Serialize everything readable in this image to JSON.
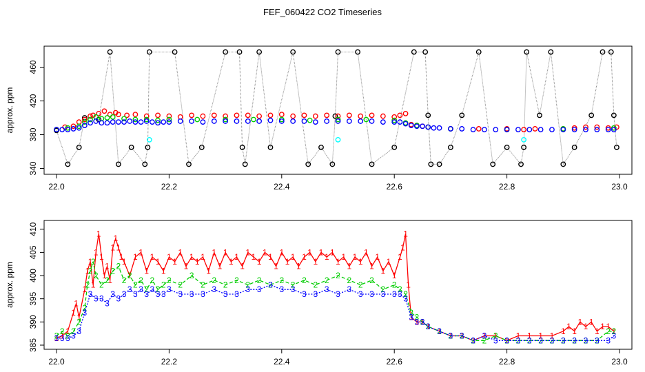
{
  "title": "FEF_060422  CO2 Timeseries",
  "colors": {
    "black": "#000000",
    "red": "#ff0000",
    "green": "#00cd00",
    "blue": "#0000ff",
    "cyan": "#00ffff",
    "dotted": "#888888"
  },
  "chart_data": [
    {
      "type": "scatter",
      "title": "",
      "xlabel": "",
      "ylabel": "approx. ppm",
      "xlim": [
        22.0,
        23.0
      ],
      "ylim": [
        338,
        480
      ],
      "xticks": [
        22.0,
        22.2,
        22.4,
        22.6,
        22.8,
        23.0
      ],
      "xtick_labels": [
        "22.0",
        "22.2",
        "22.4",
        "22.6",
        "22.8",
        "23.0"
      ],
      "yticks": [
        340,
        380,
        420,
        460
      ],
      "ytick_labels": [
        "340",
        "380",
        "420",
        "460"
      ],
      "series": [
        {
          "name": "black",
          "color": "#000000",
          "x": [
            22.0,
            22.02,
            22.04,
            22.05,
            22.075,
            22.095,
            22.11,
            22.133,
            22.157,
            22.162,
            22.165,
            22.21,
            22.235,
            22.258,
            22.3,
            22.325,
            22.33,
            22.335,
            22.36,
            22.38,
            22.42,
            22.447,
            22.47,
            22.49,
            22.495,
            22.5,
            22.535,
            22.56,
            22.6,
            22.635,
            22.655,
            22.66,
            22.665,
            22.68,
            22.7,
            22.72,
            22.75,
            22.775,
            22.8,
            22.825,
            22.83,
            22.835,
            22.858,
            22.878,
            22.9,
            22.92,
            22.95,
            22.97,
            22.985,
            22.99,
            22.995
          ],
          "y": [
            385,
            345,
            365,
            400,
            398,
            478,
            345,
            365,
            345,
            365,
            478,
            478,
            345,
            365,
            478,
            478,
            365,
            345,
            478,
            365,
            478,
            345,
            365,
            345,
            402,
            478,
            478,
            345,
            365,
            478,
            478,
            403,
            345,
            345,
            365,
            403,
            478,
            345,
            365,
            345,
            365,
            478,
            403,
            478,
            345,
            365,
            403,
            478,
            478,
            403,
            365
          ]
        },
        {
          "name": "red",
          "color": "#ff0000",
          "x": [
            22.0,
            22.015,
            22.03,
            22.04,
            22.05,
            22.06,
            22.065,
            22.075,
            22.085,
            22.095,
            22.105,
            22.11,
            22.125,
            22.14,
            22.16,
            22.18,
            22.2,
            22.22,
            22.24,
            22.26,
            22.28,
            22.3,
            22.32,
            22.34,
            22.36,
            22.38,
            22.4,
            22.42,
            22.44,
            22.46,
            22.48,
            22.5,
            22.52,
            22.54,
            22.56,
            22.58,
            22.6,
            22.61,
            22.62,
            22.63,
            22.64,
            22.65,
            22.66,
            22.7,
            22.75,
            22.8,
            22.83,
            22.85,
            22.9,
            22.92,
            22.94,
            22.96,
            22.98,
            22.995
          ],
          "y": [
            386,
            389,
            390,
            395,
            398,
            402,
            403,
            405,
            408,
            404,
            406,
            404,
            403,
            404,
            402,
            403,
            402,
            401,
            403,
            402,
            403,
            402,
            403,
            403,
            402,
            403,
            404,
            402,
            403,
            402,
            403,
            402,
            403,
            402,
            403,
            402,
            401,
            403,
            405,
            392,
            391,
            390,
            389,
            387,
            387,
            387,
            386,
            387,
            387,
            388,
            389,
            389,
            388,
            389
          ]
        },
        {
          "name": "green",
          "color": "#00cd00",
          "x": [
            22.0,
            22.02,
            22.04,
            22.05,
            22.06,
            22.07,
            22.08,
            22.09,
            22.1,
            22.12,
            22.14,
            22.16,
            22.18,
            22.2,
            22.25,
            22.3,
            22.35,
            22.4,
            22.45,
            22.5,
            22.55,
            22.6,
            22.62,
            22.64,
            22.66,
            22.7,
            22.8,
            22.9,
            22.99
          ],
          "y": [
            386,
            388,
            390,
            395,
            398,
            401,
            399,
            400,
            401,
            399,
            398,
            398,
            397,
            398,
            398,
            398,
            398,
            398,
            397,
            398,
            398,
            397,
            394,
            391,
            389,
            387,
            386,
            387,
            388
          ]
        },
        {
          "name": "blue",
          "color": "#0000ff",
          "x": [
            22.0,
            22.01,
            22.02,
            22.03,
            22.04,
            22.05,
            22.06,
            22.07,
            22.08,
            22.09,
            22.1,
            22.11,
            22.12,
            22.13,
            22.14,
            22.15,
            22.16,
            22.17,
            22.18,
            22.19,
            22.2,
            22.22,
            22.24,
            22.26,
            22.28,
            22.3,
            22.32,
            22.34,
            22.36,
            22.38,
            22.4,
            22.42,
            22.44,
            22.46,
            22.48,
            22.5,
            22.52,
            22.54,
            22.56,
            22.58,
            22.6,
            22.61,
            22.62,
            22.63,
            22.64,
            22.65,
            22.66,
            22.67,
            22.68,
            22.7,
            22.72,
            22.74,
            22.76,
            22.78,
            22.8,
            22.82,
            22.84,
            22.86,
            22.88,
            22.9,
            22.92,
            22.94,
            22.96,
            22.98,
            22.99
          ],
          "y": [
            386,
            386,
            386,
            387,
            388,
            391,
            394,
            396,
            394,
            394,
            395,
            395,
            395,
            396,
            395,
            395,
            396,
            395,
            394,
            395,
            395,
            396,
            396,
            395,
            396,
            396,
            396,
            396,
            396,
            397,
            396,
            396,
            396,
            395,
            396,
            396,
            396,
            396,
            396,
            395,
            395,
            395,
            393,
            391,
            390,
            390,
            389,
            388,
            388,
            387,
            387,
            386,
            386,
            386,
            386,
            386,
            386,
            386,
            386,
            386,
            386,
            386,
            386,
            386,
            386
          ]
        },
        {
          "name": "cyan",
          "color": "#00ffff",
          "x": [
            22.165,
            22.5,
            22.83
          ],
          "y": [
            374,
            374,
            374
          ]
        }
      ]
    },
    {
      "type": "line",
      "title": "",
      "xlabel": "",
      "ylabel": "approx. ppm",
      "xlim": [
        22.0,
        23.0
      ],
      "ylim": [
        385,
        411
      ],
      "xticks": [
        22.0,
        22.2,
        22.4,
        22.6,
        22.8,
        23.0
      ],
      "xtick_labels": [
        "22.0",
        "22.2",
        "22.4",
        "22.6",
        "22.8",
        "23.0"
      ],
      "yticks": [
        385,
        390,
        395,
        400,
        405,
        410
      ],
      "ytick_labels": [
        "385",
        "390",
        "395",
        "400",
        "405",
        "410"
      ],
      "series": [
        {
          "name": "1",
          "label": "1",
          "color": "#ff0000",
          "x": [
            22.0,
            22.01,
            22.02,
            22.03,
            22.035,
            22.04,
            22.05,
            22.055,
            22.06,
            22.065,
            22.07,
            22.075,
            22.08,
            22.085,
            22.09,
            22.095,
            22.1,
            22.105,
            22.11,
            22.115,
            22.12,
            22.13,
            22.14,
            22.15,
            22.16,
            22.17,
            22.18,
            22.19,
            22.2,
            22.21,
            22.22,
            22.23,
            22.24,
            22.25,
            22.26,
            22.27,
            22.28,
            22.29,
            22.3,
            22.31,
            22.32,
            22.33,
            22.34,
            22.35,
            22.36,
            22.37,
            22.38,
            22.39,
            22.4,
            22.41,
            22.42,
            22.43,
            22.44,
            22.45,
            22.46,
            22.47,
            22.48,
            22.49,
            22.5,
            22.51,
            22.52,
            22.53,
            22.54,
            22.55,
            22.56,
            22.57,
            22.58,
            22.59,
            22.6,
            22.61,
            22.615,
            22.62,
            22.625,
            22.63,
            22.64,
            22.65,
            22.66,
            22.68,
            22.7,
            22.72,
            22.74,
            22.76,
            22.78,
            22.8,
            22.82,
            22.84,
            22.86,
            22.88,
            22.9,
            22.91,
            22.92,
            22.93,
            22.94,
            22.95,
            22.96,
            22.97,
            22.98,
            22.99
          ],
          "y": [
            386.5,
            387,
            388,
            392,
            394,
            391,
            397,
            401,
            403,
            398,
            405,
            409,
            404,
            400,
            402,
            399,
            406,
            408,
            406,
            404,
            403,
            400,
            404,
            405,
            401,
            404,
            403,
            401,
            404,
            403,
            405,
            402,
            404,
            403,
            404,
            401,
            405,
            402,
            405,
            403,
            404,
            402,
            405,
            404,
            403,
            405,
            404,
            402,
            405,
            403,
            404,
            402,
            404,
            405,
            403,
            405,
            404,
            405,
            403,
            404,
            402,
            404,
            403,
            405,
            402,
            404,
            401,
            403,
            400,
            404,
            406,
            409,
            398,
            391,
            390,
            390,
            389,
            388,
            387,
            387,
            386,
            387,
            387,
            386,
            387,
            387,
            387,
            387,
            388,
            389,
            388,
            390,
            389,
            390,
            388,
            389,
            389,
            388
          ]
        },
        {
          "name": "2",
          "label": "2",
          "color": "#00cd00",
          "x": [
            22.0,
            22.01,
            22.02,
            22.03,
            22.04,
            22.05,
            22.055,
            22.06,
            22.065,
            22.07,
            22.08,
            22.09,
            22.1,
            22.11,
            22.12,
            22.13,
            22.14,
            22.15,
            22.16,
            22.17,
            22.18,
            22.19,
            22.2,
            22.22,
            22.24,
            22.26,
            22.28,
            22.3,
            22.32,
            22.34,
            22.36,
            22.38,
            22.4,
            22.42,
            22.44,
            22.46,
            22.48,
            22.5,
            22.52,
            22.54,
            22.56,
            22.58,
            22.6,
            22.61,
            22.62,
            22.63,
            22.64,
            22.65,
            22.66,
            22.68,
            22.7,
            22.72,
            22.74,
            22.76,
            22.78,
            22.8,
            22.82,
            22.84,
            22.86,
            22.88,
            22.9,
            22.92,
            22.94,
            22.96,
            22.98,
            22.99
          ],
          "y": [
            387,
            388,
            387,
            388,
            390,
            393,
            398,
            401,
            403,
            400,
            398,
            399,
            401,
            402,
            399,
            400,
            398,
            399,
            397,
            399,
            397,
            398,
            399,
            398,
            400,
            398,
            399,
            398,
            399,
            398,
            399,
            398,
            399,
            398,
            399,
            398,
            399,
            400,
            399,
            398,
            399,
            397,
            398,
            397,
            396,
            392,
            391,
            390,
            389,
            388,
            387,
            387,
            386,
            386,
            387,
            386,
            386,
            386,
            386,
            386,
            386,
            386,
            386,
            386,
            388,
            388
          ]
        },
        {
          "name": "3",
          "label": "3",
          "color": "#0000ff",
          "x": [
            22.0,
            22.01,
            22.02,
            22.03,
            22.04,
            22.05,
            22.06,
            22.07,
            22.08,
            22.09,
            22.1,
            22.11,
            22.12,
            22.13,
            22.14,
            22.15,
            22.16,
            22.17,
            22.18,
            22.19,
            22.2,
            22.22,
            22.24,
            22.26,
            22.28,
            22.3,
            22.32,
            22.34,
            22.36,
            22.38,
            22.4,
            22.42,
            22.44,
            22.46,
            22.48,
            22.5,
            22.52,
            22.54,
            22.56,
            22.58,
            22.6,
            22.61,
            22.62,
            22.63,
            22.64,
            22.65,
            22.66,
            22.68,
            22.7,
            22.72,
            22.74,
            22.76,
            22.78,
            22.8,
            22.82,
            22.84,
            22.86,
            22.88,
            22.9,
            22.92,
            22.94,
            22.96,
            22.98,
            22.99
          ],
          "y": [
            386.5,
            386.5,
            386.5,
            387,
            388,
            392,
            396,
            395,
            395,
            394,
            396,
            395,
            396,
            397,
            396,
            397,
            396,
            397,
            396,
            396,
            397,
            396,
            396,
            396,
            397,
            396,
            396,
            397,
            397,
            398,
            397,
            397,
            396,
            396,
            397,
            396,
            397,
            396,
            396,
            396,
            396,
            396,
            395,
            391,
            390,
            390,
            389,
            388,
            387,
            387,
            386,
            387,
            386,
            386,
            386,
            386,
            386,
            386,
            386,
            386,
            386,
            386,
            386,
            387
          ]
        }
      ]
    }
  ]
}
